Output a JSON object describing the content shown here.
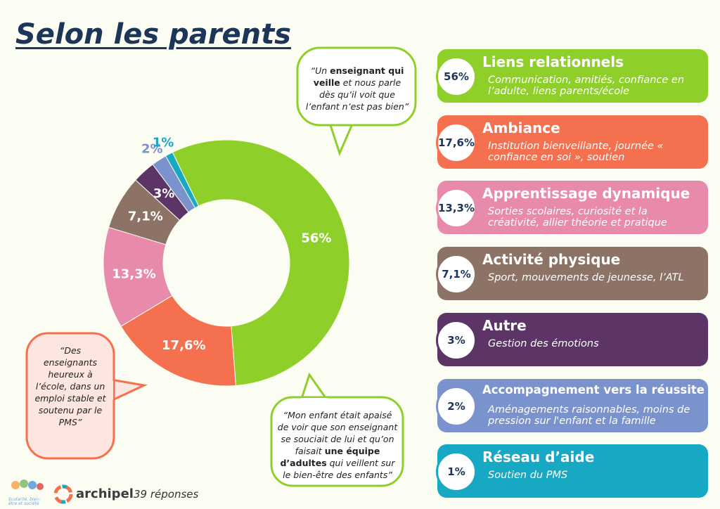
{
  "title": "Selon les parents",
  "chart_data": {
    "type": "pie",
    "donut": true,
    "categories": [
      "Liens relationnels",
      "Ambiance",
      "Apprentissage dynamique",
      "Activité physique",
      "Autre",
      "Accompagnement vers la réussite",
      "Réseau d’aide"
    ],
    "values": [
      56,
      17.6,
      13.3,
      7.1,
      3,
      2,
      1
    ],
    "value_labels": [
      "56%",
      "17,6%",
      "13,3%",
      "7,1%",
      "3%",
      "2%",
      "1%"
    ],
    "colors": [
      "#8fcf2a",
      "#f5704f",
      "#e88aab",
      "#8c7365",
      "#5c3566",
      "#7b93cc",
      "#17a8c4"
    ]
  },
  "descriptions": [
    "Communication, amitiés, confiance en l’adulte, liens parents/école",
    "Institution bienveillante, journée « confiance en soi », soutien",
    "Sorties scolaires, curiosité et la créativité, allier théorie et pratique",
    "Sport, mouvements de jeunesse, l’ATL",
    "Gestion des émotions",
    "Aménagements raisonnables, moins de pression sur l'enfant et la famille",
    "Soutien du PMS"
  ],
  "quotes": [
    {
      "parts": [
        {
          "text": "“Un "
        },
        {
          "text": "enseignant qui veille",
          "bold": true
        },
        {
          "text": " et nous parle dès qu’il voit que l’enfant n’est pas bien”"
        }
      ]
    },
    {
      "parts": [
        {
          "text": "“Des enseignants heureux à l’école, dans un emploi stable et soutenu par le PMS”"
        }
      ]
    },
    {
      "parts": [
        {
          "text": "“Mon enfant était apaisé de voir que son enseignant se souciait de lui et qu’on faisait "
        },
        {
          "text": "une équipe d’adultes",
          "bold": true
        },
        {
          "text": " qui veillent sur le bien-être des enfants”"
        }
      ]
    }
  ],
  "footer": {
    "logo_caption": "Scolarité, bien-être et société",
    "brand": "archipel",
    "responses": "39 réponses"
  }
}
